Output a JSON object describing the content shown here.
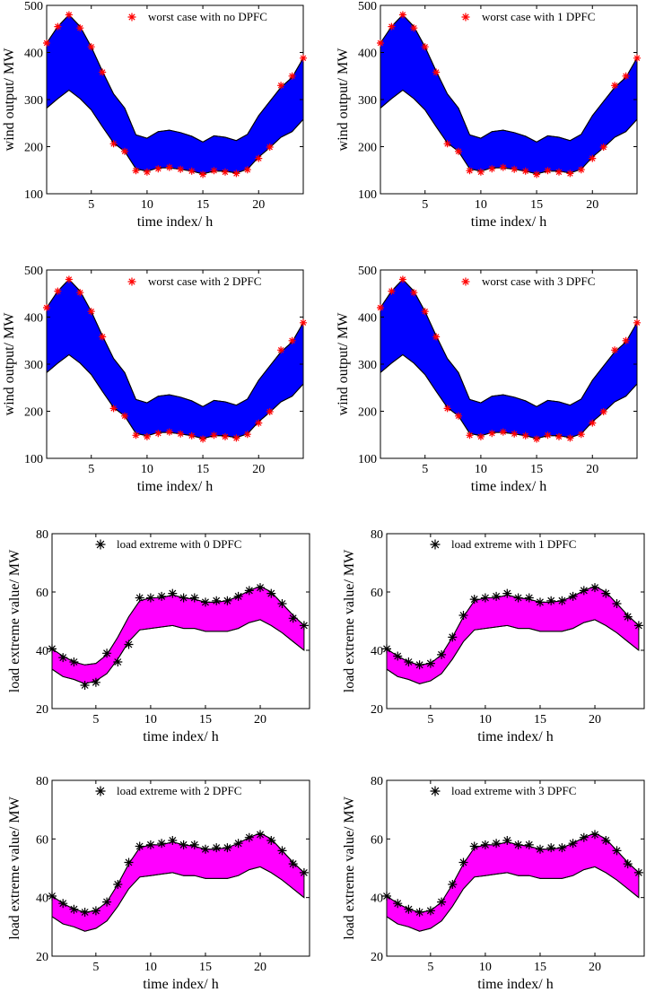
{
  "colors": {
    "wind_band": "#0000ff",
    "load_band": "#ff00ff",
    "wind_marker": "#ff0000",
    "load_marker": "#000000"
  },
  "chart_data": [
    {
      "type": "area",
      "title": "",
      "xlabel": "time index/ h",
      "ylabel": "wind output/ MW",
      "xlim": [
        1,
        24
      ],
      "ylim": [
        100,
        500
      ],
      "xticks": [
        5,
        10,
        15,
        20
      ],
      "yticks": [
        100,
        200,
        300,
        400,
        500
      ],
      "legend": "worst case with no DPFC",
      "legend_position": "top-right",
      "x": [
        1,
        2,
        3,
        4,
        5,
        6,
        7,
        8,
        9,
        10,
        11,
        12,
        13,
        14,
        15,
        16,
        17,
        18,
        19,
        20,
        21,
        22,
        23,
        24
      ],
      "series": [
        {
          "name": "upper bound",
          "values": [
            420,
            455,
            480,
            455,
            412,
            360,
            312,
            282,
            225,
            218,
            232,
            235,
            230,
            222,
            210,
            223,
            220,
            213,
            226,
            266,
            296,
            326,
            347,
            388
          ]
        },
        {
          "name": "lower bound",
          "values": [
            282,
            302,
            320,
            302,
            278,
            242,
            208,
            190,
            153,
            148,
            155,
            155,
            152,
            148,
            142,
            148,
            148,
            144,
            152,
            178,
            198,
            220,
            232,
            258
          ]
        },
        {
          "name": "worst case with no DPFC",
          "values": [
            420,
            455,
            480,
            452,
            412,
            358,
            206,
            190,
            149,
            146,
            153,
            156,
            152,
            148,
            141,
            149,
            146,
            143,
            151,
            175,
            199,
            330,
            350,
            388
          ]
        }
      ]
    },
    {
      "type": "area",
      "title": "",
      "xlabel": "time index/ h",
      "ylabel": "wind output/ MW",
      "xlim": [
        1,
        24
      ],
      "ylim": [
        100,
        500
      ],
      "xticks": [
        5,
        10,
        15,
        20
      ],
      "yticks": [
        100,
        200,
        300,
        400,
        500
      ],
      "legend": "worst case with 1 DPFC",
      "legend_position": "top-right",
      "x": [
        1,
        2,
        3,
        4,
        5,
        6,
        7,
        8,
        9,
        10,
        11,
        12,
        13,
        14,
        15,
        16,
        17,
        18,
        19,
        20,
        21,
        22,
        23,
        24
      ],
      "series": [
        {
          "name": "upper bound",
          "values": [
            420,
            455,
            480,
            455,
            412,
            360,
            312,
            282,
            225,
            218,
            232,
            235,
            230,
            222,
            210,
            223,
            220,
            213,
            226,
            266,
            296,
            326,
            347,
            388
          ]
        },
        {
          "name": "lower bound",
          "values": [
            282,
            302,
            320,
            302,
            278,
            242,
            208,
            190,
            153,
            148,
            155,
            155,
            152,
            148,
            142,
            148,
            148,
            144,
            152,
            178,
            198,
            220,
            232,
            258
          ]
        },
        {
          "name": "worst case with 1 DPFC",
          "values": [
            420,
            455,
            480,
            452,
            412,
            358,
            206,
            190,
            149,
            146,
            153,
            156,
            152,
            148,
            141,
            149,
            146,
            143,
            151,
            175,
            199,
            330,
            350,
            388
          ]
        }
      ]
    },
    {
      "type": "area",
      "title": "",
      "xlabel": "time index/ h",
      "ylabel": "wind output/ MW",
      "xlim": [
        1,
        24
      ],
      "ylim": [
        100,
        500
      ],
      "xticks": [
        5,
        10,
        15,
        20
      ],
      "yticks": [
        100,
        200,
        300,
        400,
        500
      ],
      "legend": "worst case with 2 DPFC",
      "legend_position": "top-right",
      "x": [
        1,
        2,
        3,
        4,
        5,
        6,
        7,
        8,
        9,
        10,
        11,
        12,
        13,
        14,
        15,
        16,
        17,
        18,
        19,
        20,
        21,
        22,
        23,
        24
      ],
      "series": [
        {
          "name": "upper bound",
          "values": [
            420,
            455,
            480,
            455,
            412,
            360,
            312,
            282,
            225,
            218,
            232,
            235,
            230,
            222,
            210,
            223,
            220,
            213,
            226,
            266,
            296,
            326,
            347,
            388
          ]
        },
        {
          "name": "lower bound",
          "values": [
            282,
            302,
            320,
            302,
            278,
            242,
            208,
            190,
            153,
            148,
            155,
            155,
            152,
            148,
            142,
            148,
            148,
            144,
            152,
            178,
            198,
            220,
            232,
            258
          ]
        },
        {
          "name": "worst case with 2 DPFC",
          "values": [
            420,
            455,
            480,
            452,
            412,
            358,
            206,
            190,
            149,
            146,
            153,
            156,
            152,
            148,
            141,
            149,
            146,
            143,
            151,
            175,
            199,
            330,
            350,
            388
          ]
        }
      ]
    },
    {
      "type": "area",
      "title": "",
      "xlabel": "time index/ h",
      "ylabel": "wind output/ MW",
      "xlim": [
        1,
        24
      ],
      "ylim": [
        100,
        500
      ],
      "xticks": [
        5,
        10,
        15,
        20
      ],
      "yticks": [
        100,
        200,
        300,
        400,
        500
      ],
      "legend": "worst case with 3 DPFC",
      "legend_position": "top-right",
      "x": [
        1,
        2,
        3,
        4,
        5,
        6,
        7,
        8,
        9,
        10,
        11,
        12,
        13,
        14,
        15,
        16,
        17,
        18,
        19,
        20,
        21,
        22,
        23,
        24
      ],
      "series": [
        {
          "name": "upper bound",
          "values": [
            420,
            455,
            480,
            455,
            412,
            360,
            312,
            282,
            225,
            218,
            232,
            235,
            230,
            222,
            210,
            223,
            220,
            213,
            226,
            266,
            296,
            326,
            347,
            388
          ]
        },
        {
          "name": "lower bound",
          "values": [
            282,
            302,
            320,
            302,
            278,
            242,
            208,
            190,
            153,
            148,
            155,
            155,
            152,
            148,
            142,
            148,
            148,
            144,
            152,
            178,
            198,
            220,
            232,
            258
          ]
        },
        {
          "name": "worst case with 3 DPFC",
          "values": [
            420,
            455,
            480,
            452,
            412,
            358,
            206,
            190,
            149,
            146,
            153,
            156,
            152,
            148,
            141,
            149,
            146,
            143,
            151,
            175,
            199,
            330,
            350,
            388
          ]
        }
      ]
    },
    {
      "type": "area",
      "title": "",
      "xlabel": "time index/ h",
      "ylabel": "load extreme value/ MW",
      "xlim": [
        1,
        24.5
      ],
      "ylim": [
        20,
        80
      ],
      "xticks": [
        5,
        10,
        15,
        20
      ],
      "yticks": [
        20,
        40,
        60,
        80
      ],
      "legend": "load extreme with 0 DPFC",
      "legend_position": "top-right",
      "x": [
        1,
        2,
        3,
        4,
        5,
        6,
        7,
        8,
        9,
        10,
        11,
        12,
        13,
        14,
        15,
        16,
        17,
        18,
        19,
        20,
        21,
        22,
        23,
        24
      ],
      "series": [
        {
          "name": "upper bound",
          "values": [
            40.5,
            38,
            36,
            35,
            35.5,
            38.5,
            44.5,
            51.5,
            57,
            58,
            58,
            59,
            58,
            57.5,
            56.5,
            56.5,
            57,
            58.5,
            60.5,
            62,
            60,
            56,
            52,
            48.5
          ]
        },
        {
          "name": "lower bound",
          "values": [
            33.5,
            31,
            30,
            28.5,
            29.5,
            32,
            37,
            43,
            47,
            47.5,
            48,
            48.5,
            47.5,
            47.5,
            46.5,
            46.5,
            46.5,
            47.5,
            49.5,
            50.5,
            48.5,
            46,
            43,
            40
          ]
        },
        {
          "name": "load extreme with 0 DPFC",
          "values": [
            40.5,
            37.5,
            36,
            28,
            29,
            39,
            36,
            42,
            58,
            58,
            58.5,
            59.5,
            58,
            58,
            56.5,
            57,
            57,
            58.5,
            60.5,
            61.5,
            59.5,
            56,
            51,
            48.5
          ]
        }
      ]
    },
    {
      "type": "area",
      "title": "",
      "xlabel": "time index/ h",
      "ylabel": "load extreme value/ MW",
      "xlim": [
        1,
        24.5
      ],
      "ylim": [
        20,
        80
      ],
      "xticks": [
        5,
        10,
        15,
        20
      ],
      "yticks": [
        20,
        40,
        60,
        80
      ],
      "legend": "load extreme with 1 DPFC",
      "legend_position": "top-right",
      "x": [
        1,
        2,
        3,
        4,
        5,
        6,
        7,
        8,
        9,
        10,
        11,
        12,
        13,
        14,
        15,
        16,
        17,
        18,
        19,
        20,
        21,
        22,
        23,
        24
      ],
      "series": [
        {
          "name": "upper bound",
          "values": [
            40.5,
            38,
            36,
            35,
            35.5,
            38.5,
            44.5,
            51.5,
            57,
            58,
            58,
            59,
            58,
            57.5,
            56.5,
            56.5,
            57,
            58.5,
            60.5,
            62,
            60,
            56,
            52,
            48.5
          ]
        },
        {
          "name": "lower bound",
          "values": [
            33.5,
            31,
            30,
            28.5,
            29.5,
            32,
            37,
            43,
            47,
            47.5,
            48,
            48.5,
            47.5,
            47.5,
            46.5,
            46.5,
            46.5,
            47.5,
            49.5,
            50.5,
            48.5,
            46,
            43,
            40
          ]
        },
        {
          "name": "load extreme with 1 DPFC",
          "values": [
            40.5,
            38,
            36,
            35,
            35.5,
            38.5,
            44.5,
            52,
            57.5,
            58,
            58.5,
            59.5,
            58,
            58,
            56.5,
            57,
            57,
            58.5,
            60.5,
            61.5,
            59.5,
            56,
            51.5,
            48.5
          ]
        }
      ]
    },
    {
      "type": "area",
      "title": "",
      "xlabel": "time index/ h",
      "ylabel": "load extreme value/ MW",
      "xlim": [
        1,
        24.5
      ],
      "ylim": [
        20,
        80
      ],
      "xticks": [
        5,
        10,
        15,
        20
      ],
      "yticks": [
        20,
        40,
        60,
        80
      ],
      "legend": "load extreme with 2 DPFC",
      "legend_position": "top-right",
      "x": [
        1,
        2,
        3,
        4,
        5,
        6,
        7,
        8,
        9,
        10,
        11,
        12,
        13,
        14,
        15,
        16,
        17,
        18,
        19,
        20,
        21,
        22,
        23,
        24
      ],
      "series": [
        {
          "name": "upper bound",
          "values": [
            40.5,
            38,
            36,
            35,
            35.5,
            38.5,
            44.5,
            51.5,
            57,
            58,
            58,
            59,
            58,
            57.5,
            56.5,
            56.5,
            57,
            58.5,
            60.5,
            62,
            60,
            56,
            52,
            48.5
          ]
        },
        {
          "name": "lower bound",
          "values": [
            33.5,
            31,
            30,
            28.5,
            29.5,
            32,
            37,
            43,
            47,
            47.5,
            48,
            48.5,
            47.5,
            47.5,
            46.5,
            46.5,
            46.5,
            47.5,
            49.5,
            50.5,
            48.5,
            46,
            43,
            40
          ]
        },
        {
          "name": "load extreme with 2 DPFC",
          "values": [
            40.5,
            38,
            36,
            35,
            35.5,
            38.5,
            44.5,
            52,
            57.5,
            58,
            58.5,
            59.5,
            58,
            58,
            56.5,
            57,
            57,
            58.5,
            60.5,
            61.5,
            59.5,
            56,
            51.5,
            48.5
          ]
        }
      ]
    },
    {
      "type": "area",
      "title": "",
      "xlabel": "time index/ h",
      "ylabel": "load extreme value/ MW",
      "xlim": [
        1,
        24.5
      ],
      "ylim": [
        20,
        80
      ],
      "xticks": [
        5,
        10,
        15,
        20
      ],
      "yticks": [
        20,
        40,
        60,
        80
      ],
      "legend": "load extreme with 3 DPFC",
      "legend_position": "top-right",
      "x": [
        1,
        2,
        3,
        4,
        5,
        6,
        7,
        8,
        9,
        10,
        11,
        12,
        13,
        14,
        15,
        16,
        17,
        18,
        19,
        20,
        21,
        22,
        23,
        24
      ],
      "series": [
        {
          "name": "upper bound",
          "values": [
            40.5,
            38,
            36,
            35,
            35.5,
            38.5,
            44.5,
            51.5,
            57,
            58,
            58,
            59,
            58,
            57.5,
            56.5,
            56.5,
            57,
            58.5,
            60.5,
            62,
            60,
            56,
            52,
            48.5
          ]
        },
        {
          "name": "lower bound",
          "values": [
            33.5,
            31,
            30,
            28.5,
            29.5,
            32,
            37,
            43,
            47,
            47.5,
            48,
            48.5,
            47.5,
            47.5,
            46.5,
            46.5,
            46.5,
            47.5,
            49.5,
            50.5,
            48.5,
            46,
            43,
            40
          ]
        },
        {
          "name": "load extreme with 3 DPFC",
          "values": [
            40.5,
            38,
            36,
            35,
            35.5,
            38.5,
            44.5,
            52,
            57.5,
            58,
            58.5,
            59.5,
            58,
            58,
            56.5,
            57,
            57,
            58.5,
            60.5,
            61.5,
            59.5,
            56,
            51.5,
            48.5
          ]
        }
      ]
    }
  ]
}
